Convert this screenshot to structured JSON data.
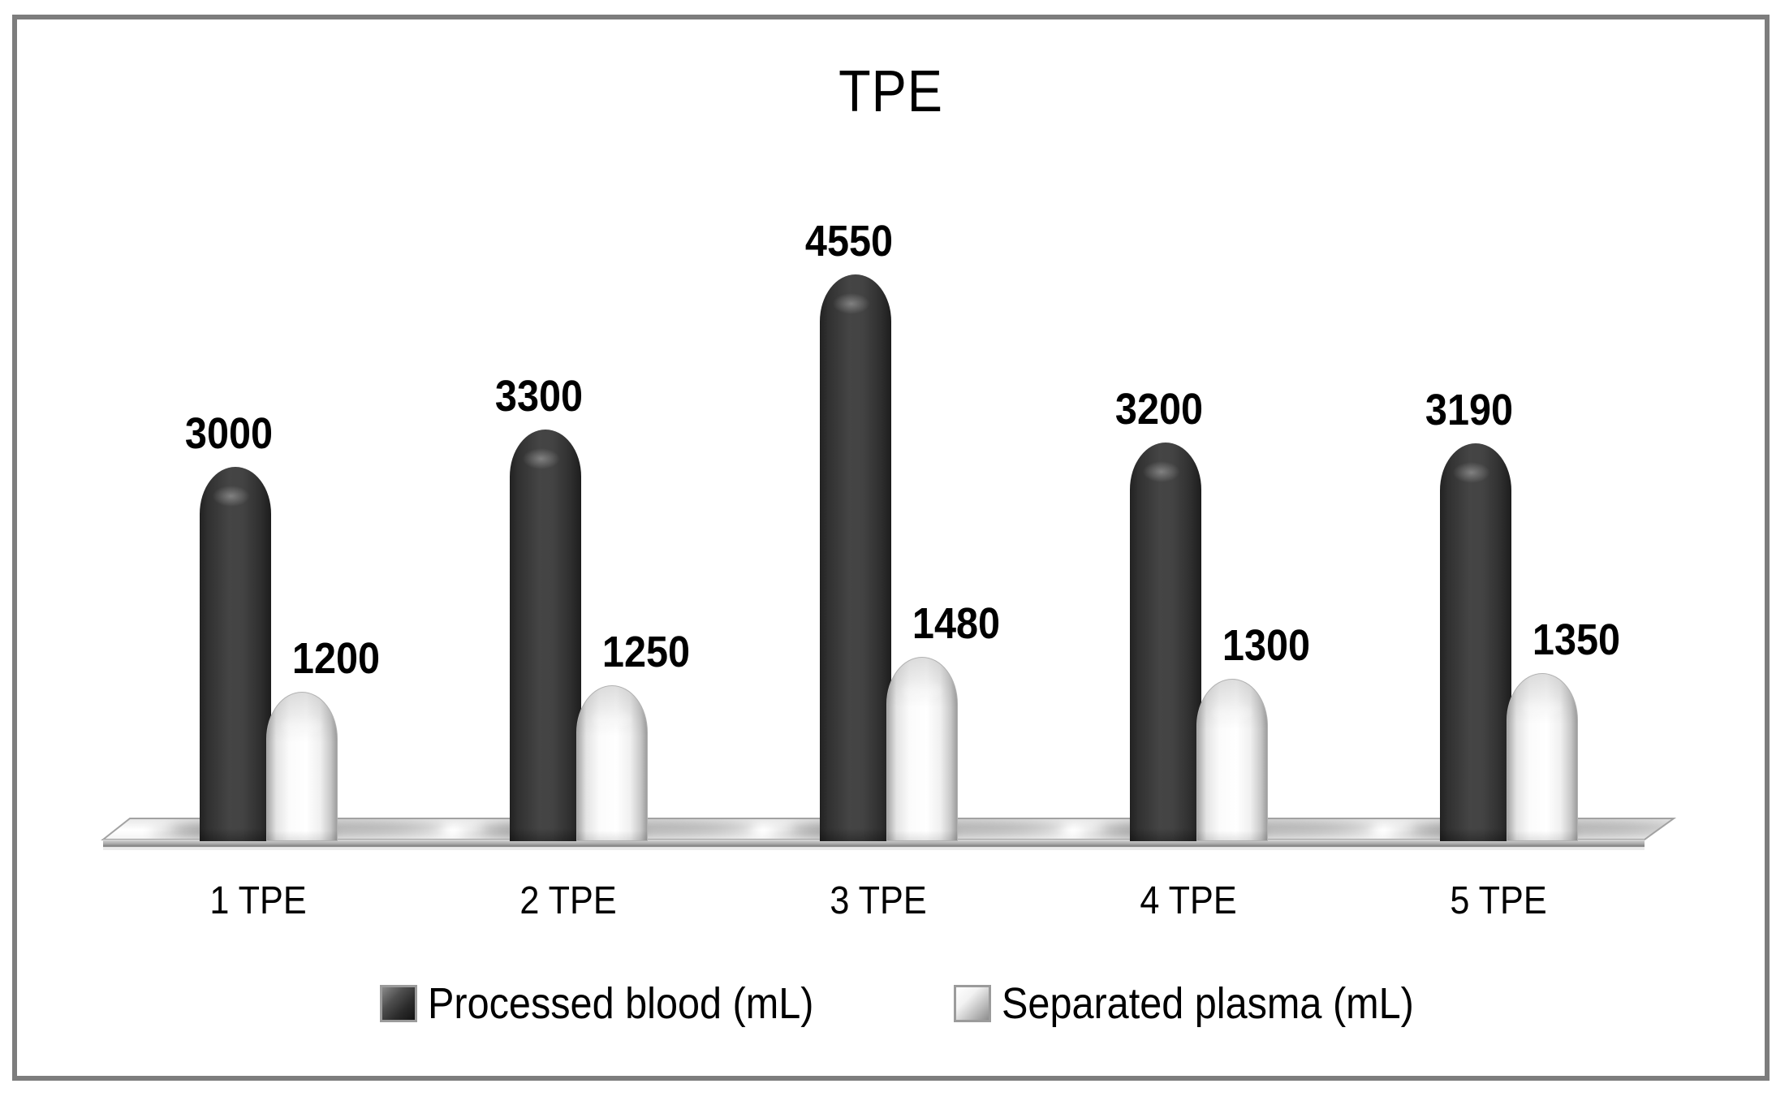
{
  "chart_data": {
    "type": "bar",
    "style": "3d-cylinder",
    "title": "TPE",
    "categories": [
      "1 TPE",
      "2 TPE",
      "3 TPE",
      "4 TPE",
      "5 TPE"
    ],
    "series": [
      {
        "name": "Processed blood (mL)",
        "color": "#3f3f3f",
        "values": [
          3000,
          3300,
          4550,
          3200,
          3190
        ]
      },
      {
        "name": "Separated plasma (mL)",
        "color": "#ffffff",
        "values": [
          1200,
          1250,
          1480,
          1300,
          1350
        ]
      }
    ],
    "value_labels_shown": true,
    "xlabel": "",
    "ylabel": "",
    "ylim": [
      0,
      4800
    ],
    "grid": false,
    "axes_visible": false,
    "legend_position": "bottom",
    "frame_border_color": "#7d7d7d",
    "floor_3d": true
  }
}
